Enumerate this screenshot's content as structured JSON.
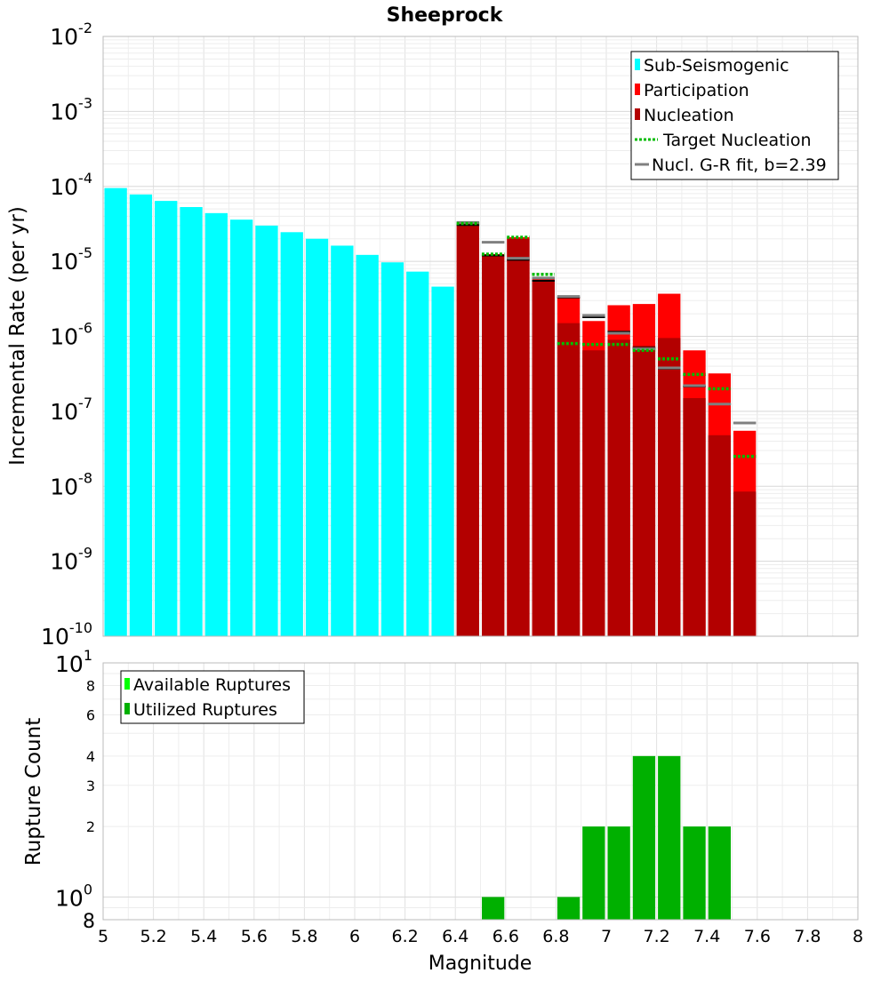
{
  "chart_data": [
    {
      "type": "bar",
      "title": "Sheeprock",
      "xlabel": "",
      "ylabel": "Incremental Rate (per yr)",
      "xlim": [
        5,
        8
      ],
      "ylim": [
        1e-10,
        0.01
      ],
      "y_scale": "log",
      "grid": true,
      "legend_position": "top-right",
      "bin_width": 0.1,
      "y_ticks": [
        {
          "base": "10",
          "exp": "-2"
        },
        {
          "base": "10",
          "exp": "-3"
        },
        {
          "base": "10",
          "exp": "-4"
        },
        {
          "base": "10",
          "exp": "-5"
        },
        {
          "base": "10",
          "exp": "-6"
        },
        {
          "base": "10",
          "exp": "-7"
        },
        {
          "base": "10",
          "exp": "-8"
        },
        {
          "base": "10",
          "exp": "-9"
        },
        {
          "base": "10",
          "exp": "-10"
        }
      ],
      "legend": [
        {
          "label": "Sub-Seismogenic",
          "kind": "box",
          "color": "#00FFFF"
        },
        {
          "label": "Participation",
          "kind": "box",
          "color": "#FF0000"
        },
        {
          "label": "Nucleation",
          "kind": "box",
          "color": "#B30000"
        },
        {
          "label": "Target Nucleation",
          "kind": "dotted",
          "color": "#00BB00"
        },
        {
          "label": "Nucl. G-R fit, b=2.39",
          "kind": "line",
          "color": "#808080"
        }
      ],
      "colors": {
        "sub_seismogenic": "#00FFFF",
        "participation": "#FF0000",
        "nucleation": "#B30000",
        "target": "#00BB00",
        "gr_fit": "#808080",
        "nucl_tick": "#000000"
      },
      "sub_seismogenic": {
        "x": [
          5.05,
          5.15,
          5.25,
          5.35,
          5.45,
          5.55,
          5.65,
          5.75,
          5.85,
          5.95,
          6.05,
          6.15,
          6.25,
          6.35
        ],
        "values": [
          9.5e-05,
          7.8e-05,
          6.4e-05,
          5.3e-05,
          4.4e-05,
          3.6e-05,
          3e-05,
          2.45e-05,
          2e-05,
          1.62e-05,
          1.22e-05,
          9.7e-06,
          7.3e-06,
          4.6e-06
        ]
      },
      "participation": {
        "x": [
          6.45,
          6.55,
          6.65,
          6.75,
          6.85,
          6.95,
          7.05,
          7.15,
          7.25,
          7.35,
          7.45,
          7.55
        ],
        "values": [
          3.2e-05,
          1.25e-05,
          2.1e-05,
          6e-06,
          3.3e-06,
          1.6e-06,
          2.6e-06,
          2.7e-06,
          3.7e-06,
          6.5e-07,
          3.2e-07,
          5.5e-08
        ]
      },
      "nucleation": {
        "x": [
          6.45,
          6.55,
          6.65,
          6.75,
          6.85,
          6.95,
          7.05,
          7.15,
          7.25,
          7.35,
          7.45,
          7.55
        ],
        "values": [
          3e-05,
          1.2e-05,
          2e-05,
          5.6e-06,
          1.5e-06,
          6.5e-07,
          9e-07,
          7.5e-07,
          9.5e-07,
          1.5e-07,
          4.8e-08,
          8.5e-09
        ]
      },
      "target_nucleation": {
        "x": [
          6.45,
          6.55,
          6.65,
          6.75,
          6.85,
          6.95,
          7.05,
          7.15,
          7.25,
          7.35,
          7.45,
          7.55
        ],
        "values": [
          3.2e-05,
          1.25e-05,
          2.1e-05,
          6.7e-06,
          8e-07,
          7.8e-07,
          7.8e-07,
          6.5e-07,
          5e-07,
          3.1e-07,
          2e-07,
          2.5e-08
        ]
      },
      "gr_fit": {
        "x": [
          6.45,
          6.55,
          6.65,
          6.75,
          6.85,
          6.95,
          7.05,
          7.15,
          7.25,
          7.35,
          7.45,
          7.55
        ],
        "values": [
          3.3e-05,
          1.8e-05,
          1.1e-05,
          6e-06,
          3.4e-06,
          1.9e-06,
          1.1e-06,
          6.8e-07,
          3.8e-07,
          2.2e-07,
          1.25e-07,
          7e-08
        ]
      },
      "nucleation_tick": {
        "x": [
          6.45,
          6.55,
          6.65,
          6.75,
          6.85,
          6.95,
          7.05,
          7.15,
          7.25,
          7.35,
          7.45
        ],
        "values": [
          3.05e-05,
          1.2e-05,
          1.05e-05,
          5.5e-06,
          3.3e-06,
          1.8e-06,
          1.15e-06,
          7e-07,
          3.7e-07,
          2.15e-07,
          1.25e-07
        ]
      }
    },
    {
      "type": "bar",
      "title": "",
      "xlabel": "Magnitude",
      "ylabel": "Rupture Count",
      "xlim": [
        5,
        8
      ],
      "ylim": [
        0.8,
        10
      ],
      "y_scale": "log",
      "grid": true,
      "legend_position": "top-left",
      "bin_width": 0.1,
      "x_ticks": [
        "5",
        "5.2",
        "5.4",
        "5.6",
        "5.8",
        "6",
        "6.2",
        "6.4",
        "6.6",
        "6.8",
        "7",
        "7.2",
        "7.4",
        "7.6",
        "7.8",
        "8"
      ],
      "y_major_ticks": [
        {
          "value": 10,
          "base": "10",
          "exp": "1"
        },
        {
          "value": 1,
          "base": "10",
          "exp": "0"
        }
      ],
      "y_minor_ticks": [
        {
          "value": 8,
          "label": "8"
        },
        {
          "value": 6,
          "label": "6"
        },
        {
          "value": 4,
          "label": "4"
        },
        {
          "value": 3,
          "label": "3"
        },
        {
          "value": 2,
          "label": "2"
        },
        {
          "value": 0.8,
          "label": "8"
        }
      ],
      "legend": [
        {
          "label": "Available Ruptures",
          "kind": "box",
          "color": "#00FF00"
        },
        {
          "label": "Utilized Ruptures",
          "kind": "box",
          "color": "#00B000"
        }
      ],
      "colors": {
        "utilized": "#00B000",
        "available": "#00FF00"
      },
      "utilized": {
        "x": [
          6.55,
          6.85,
          6.95,
          7.05,
          7.15,
          7.25,
          7.35,
          7.45
        ],
        "values": [
          1,
          1,
          2,
          2,
          4,
          4,
          2,
          2
        ]
      }
    }
  ]
}
